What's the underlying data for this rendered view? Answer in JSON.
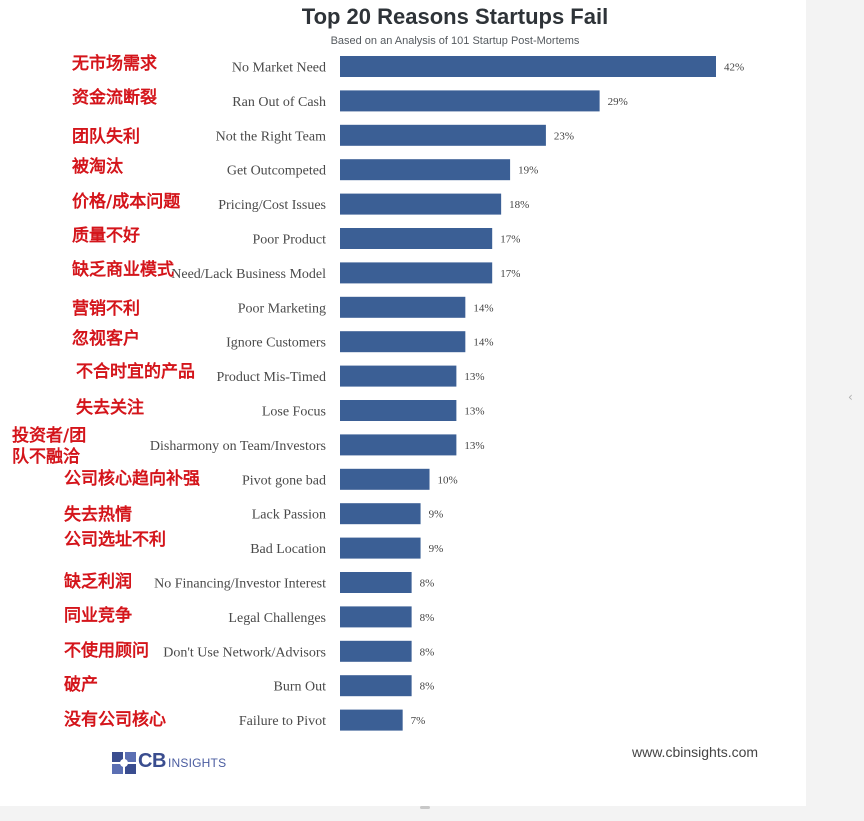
{
  "chart_data": {
    "type": "bar",
    "orientation": "horizontal",
    "title": "Top 20 Reasons Startups Fail",
    "subtitle": "Based on an Analysis of 101 Startup Post-Mortems",
    "categories": [
      "No Market Need",
      "Ran Out of Cash",
      "Not the Right Team",
      "Get Outcompeted",
      "Pricing/Cost Issues",
      "Poor Product",
      "Need/Lack Business Model",
      "Poor Marketing",
      "Ignore Customers",
      "Product Mis-Timed",
      "Lose Focus",
      "Disharmony on Team/Investors",
      "Pivot gone bad",
      "Lack Passion",
      "Bad Location",
      "No Financing/Investor Interest",
      "Legal Challenges",
      "Don't Use Network/Advisors",
      "Burn Out",
      "Failure to Pivot"
    ],
    "values": [
      42,
      29,
      23,
      19,
      18,
      17,
      17,
      14,
      14,
      13,
      13,
      13,
      10,
      9,
      9,
      8,
      8,
      8,
      8,
      7
    ],
    "value_labels": [
      "42%",
      "29%",
      "23%",
      "19%",
      "18%",
      "17%",
      "17%",
      "14%",
      "14%",
      "13%",
      "13%",
      "13%",
      "10%",
      "9%",
      "9%",
      "8%",
      "8%",
      "8%",
      "8%",
      "7%"
    ],
    "unit": "%",
    "xlim": [
      0,
      42
    ],
    "bar_color": "#3b5f95",
    "grid": false,
    "legend": "none"
  },
  "annotations_cn": [
    "无市场需求",
    "资金流断裂",
    "团队失利",
    "被淘汰",
    "价格/成本问题",
    "质量不好",
    "缺乏商业模式",
    "营销不利",
    "忽视客户",
    "不合时宜的产品",
    "失去关注",
    "投资者/团队不融洽",
    "公司核心趋向补强",
    "失去热情",
    "公司选址不利",
    "缺乏利润",
    "同业竞争",
    "不使用顾问",
    "破产",
    "没有公司核心"
  ],
  "annotation_color": "#d4151b",
  "branding": {
    "logo_cb": "CB",
    "logo_insights": "INSIGHTS",
    "website": "www.cbinsights.com"
  }
}
